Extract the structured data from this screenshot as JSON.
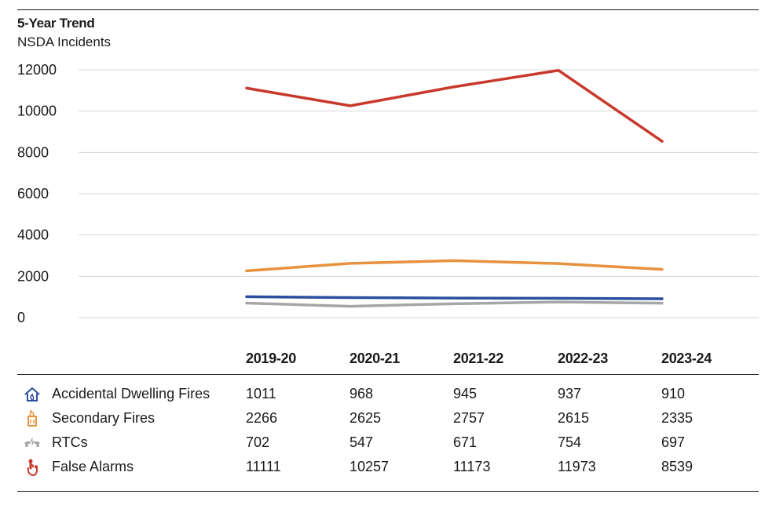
{
  "title": "5-Year Trend",
  "subtitle": "NSDA Incidents",
  "chart_data": {
    "type": "line",
    "title": "5-Year Trend",
    "subtitle": "NSDA Incidents",
    "categories": [
      "2019-20",
      "2020-21",
      "2021-22",
      "2022-23",
      "2023-24"
    ],
    "ylim": [
      0,
      12000
    ],
    "yticks": [
      0,
      2000,
      4000,
      6000,
      8000,
      10000,
      12000
    ],
    "grid": true,
    "legend": "table-below",
    "series": [
      {
        "name": "Accidental Dwelling Fires",
        "color": "#2b4f9e",
        "icon": "house-fire-icon",
        "values": [
          1011,
          968,
          945,
          937,
          910
        ]
      },
      {
        "name": "Secondary Fires",
        "color": "#e8913e",
        "icon": "bin-fire-icon",
        "values": [
          2266,
          2625,
          2757,
          2615,
          2335
        ]
      },
      {
        "name": "RTCs",
        "color": "#a6a6a6",
        "icon": "car-crash-icon",
        "values": [
          702,
          547,
          671,
          754,
          697
        ]
      },
      {
        "name": "False Alarms",
        "color": "#c8392b",
        "icon": "alarm-hand-icon",
        "values": [
          11111,
          10257,
          11173,
          11973,
          8539
        ]
      }
    ]
  }
}
